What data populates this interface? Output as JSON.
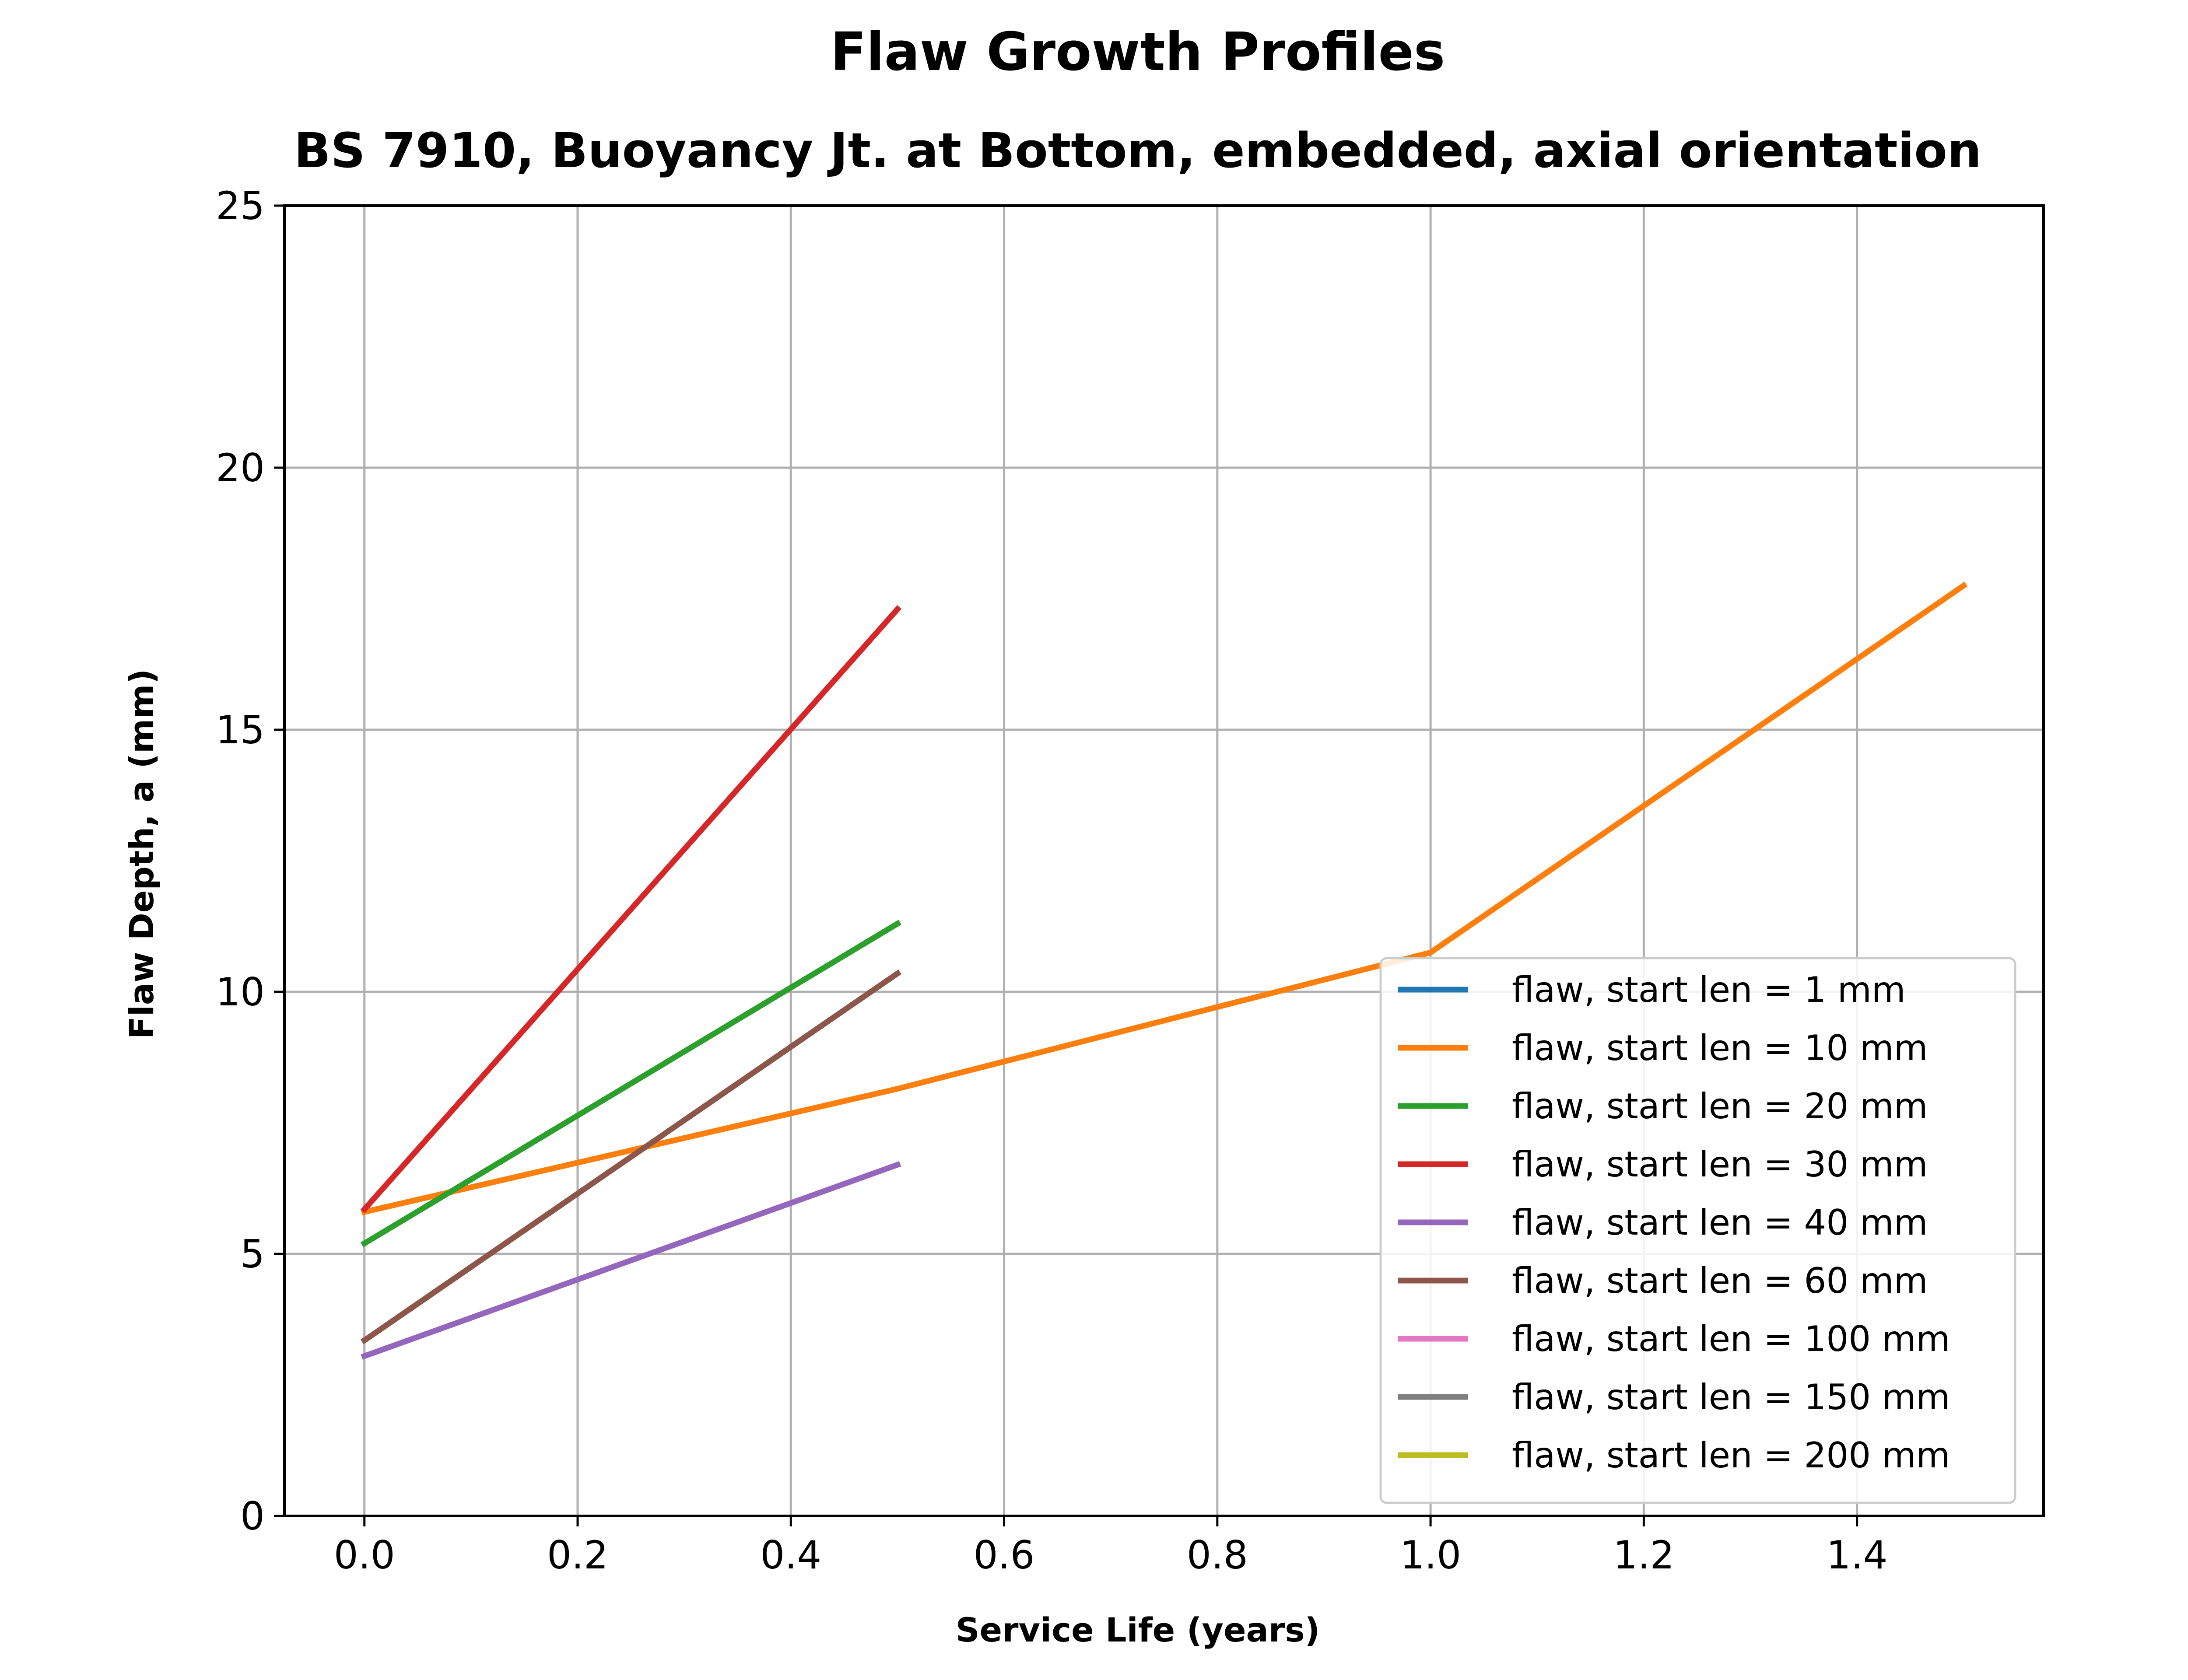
{
  "chart_data": {
    "type": "line",
    "title": "Flaw Growth Profiles",
    "subtitle": "BS 7910, Buoyancy Jt. at Bottom, embedded, axial orientation",
    "xlabel": "Service Life (years)",
    "ylabel": "Flaw Depth, a (mm)",
    "xlim": [
      -0.075,
      1.575
    ],
    "ylim": [
      0,
      25
    ],
    "xticks": [
      0.0,
      0.2,
      0.4,
      0.6,
      0.8,
      1.0,
      1.2,
      1.4
    ],
    "xtick_labels": [
      "0.0",
      "0.2",
      "0.4",
      "0.6",
      "0.8",
      "1.0",
      "1.2",
      "1.4"
    ],
    "yticks": [
      0,
      5,
      10,
      15,
      20,
      25
    ],
    "ytick_labels": [
      "0",
      "5",
      "10",
      "15",
      "20",
      "25"
    ],
    "grid": true,
    "legend_position": "lower-right",
    "series": [
      {
        "name": "flaw, start len = 1 mm",
        "color": "#1f77b4",
        "x": [],
        "y": []
      },
      {
        "name": "flaw, start len = 10 mm",
        "color": "#ff7f0e",
        "x": [
          0.0,
          0.5,
          1.0,
          1.5
        ],
        "y": [
          5.8,
          8.15,
          10.75,
          17.75
        ]
      },
      {
        "name": "flaw, start len = 20 mm",
        "color": "#2ca02c",
        "x": [
          0.0,
          0.5
        ],
        "y": [
          5.2,
          11.3
        ]
      },
      {
        "name": "flaw, start len = 30 mm",
        "color": "#d62728",
        "x": [
          0.0,
          0.5
        ],
        "y": [
          5.85,
          17.3
        ]
      },
      {
        "name": "flaw, start len = 40 mm",
        "color": "#9467bd",
        "x": [
          0.0,
          0.5
        ],
        "y": [
          3.05,
          6.7
        ]
      },
      {
        "name": "flaw, start len = 60 mm",
        "color": "#8c564b",
        "x": [
          0.0,
          0.5
        ],
        "y": [
          3.35,
          10.35
        ]
      },
      {
        "name": "flaw, start len = 100 mm",
        "color": "#e377c2",
        "x": [],
        "y": []
      },
      {
        "name": "flaw, start len = 150 mm",
        "color": "#7f7f7f",
        "x": [],
        "y": []
      },
      {
        "name": "flaw, start len = 200 mm",
        "color": "#bcbd22",
        "x": [],
        "y": []
      }
    ]
  }
}
